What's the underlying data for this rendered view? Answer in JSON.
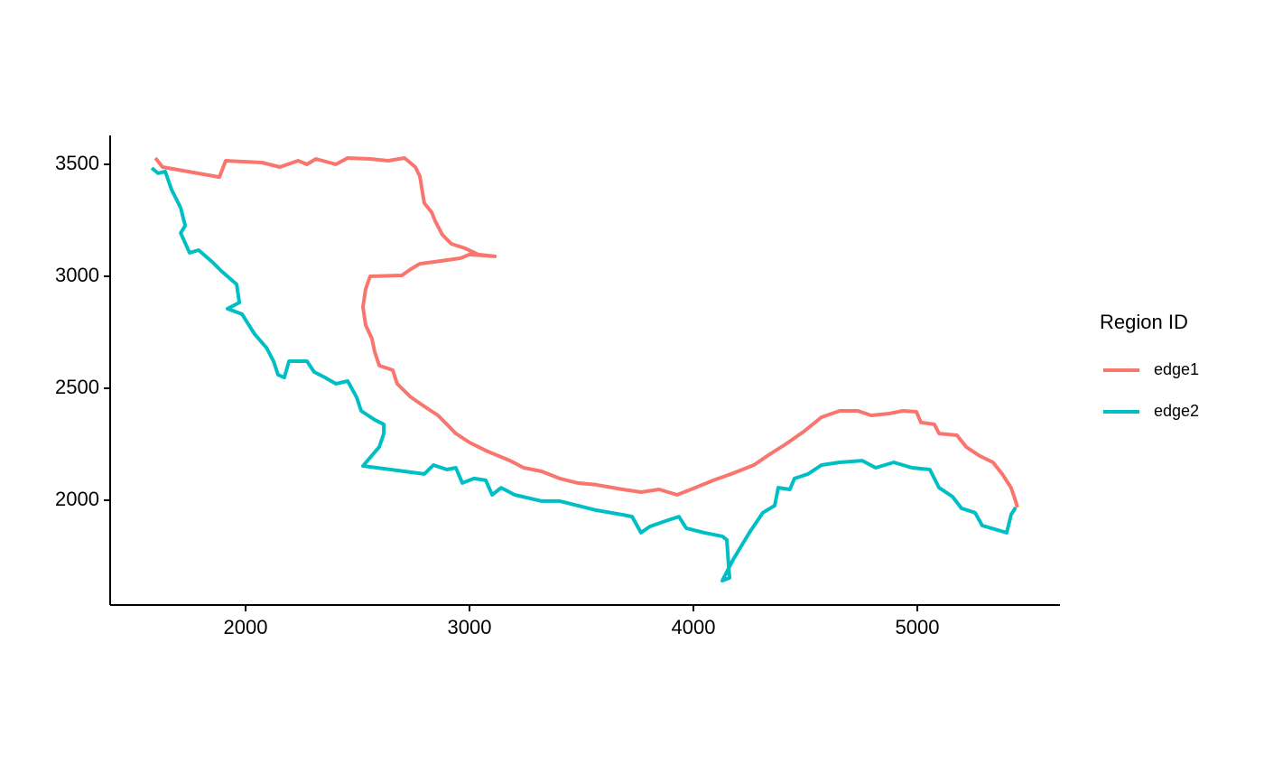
{
  "chart_data": {
    "type": "line",
    "legend_title": "Region ID",
    "legend": "right",
    "xlim": [
      1395,
      5637
    ],
    "ylim": [
      1532,
      3629
    ],
    "xticks": [
      2000,
      3000,
      4000,
      5000
    ],
    "yticks": [
      2000,
      2500,
      3000,
      3500
    ],
    "series": [
      {
        "name": "edge1",
        "color": "#F8766D",
        "x": [
          1597,
          1629,
          1883,
          1911,
          2073,
          2153,
          2234,
          2274,
          2314,
          2403,
          2456,
          2556,
          2637,
          2710,
          2758,
          2778,
          2798,
          2831,
          2847,
          2879,
          2919,
          2980,
          3040,
          3113,
          3000,
          2960,
          2839,
          2778,
          2738,
          2698,
          2556,
          2536,
          2524,
          2536,
          2564,
          2577,
          2597,
          2657,
          2677,
          2738,
          2798,
          2859,
          2899,
          2939,
          3000,
          3081,
          3181,
          3242,
          3322,
          3403,
          3484,
          3564,
          3685,
          3766,
          3847,
          3927,
          4008,
          4089,
          4169,
          4270,
          4330,
          4411,
          4492,
          4572,
          4653,
          4734,
          4794,
          4875,
          4935,
          4996,
          5016,
          5076,
          5097,
          5177,
          5218,
          5278,
          5338,
          5379,
          5419,
          5439,
          5447
        ],
        "values": [
          3528,
          3488,
          3443,
          3516,
          3508,
          3488,
          3516,
          3500,
          3524,
          3500,
          3528,
          3524,
          3516,
          3528,
          3488,
          3447,
          3327,
          3286,
          3246,
          3185,
          3145,
          3125,
          3097,
          3089,
          3097,
          3081,
          3064,
          3056,
          3032,
          3004,
          3000,
          2943,
          2863,
          2782,
          2722,
          2661,
          2601,
          2581,
          2520,
          2460,
          2419,
          2379,
          2339,
          2298,
          2258,
          2218,
          2177,
          2145,
          2129,
          2097,
          2077,
          2069,
          2048,
          2036,
          2048,
          2024,
          2056,
          2089,
          2117,
          2157,
          2198,
          2250,
          2306,
          2371,
          2399,
          2399,
          2379,
          2387,
          2399,
          2395,
          2347,
          2339,
          2298,
          2290,
          2238,
          2198,
          2169,
          2117,
          2056,
          1996,
          1968
        ]
      },
      {
        "name": "edge2",
        "color": "#00BFC4",
        "x": [
          1581,
          1609,
          1641,
          1669,
          1710,
          1730,
          1710,
          1750,
          1790,
          1851,
          1891,
          1960,
          1972,
          1919,
          1984,
          2040,
          2093,
          2125,
          2145,
          2173,
          2194,
          2274,
          2306,
          2355,
          2403,
          2456,
          2496,
          2516,
          2577,
          2617,
          2617,
          2597,
          2524,
          2798,
          2839,
          2899,
          2939,
          2968,
          3020,
          3073,
          3101,
          3141,
          3202,
          3322,
          3403,
          3484,
          3564,
          3685,
          3726,
          3766,
          3806,
          3887,
          3935,
          3968,
          4048,
          4129,
          4149,
          4161,
          4129,
          4177,
          4250,
          4310,
          4363,
          4379,
          4431,
          4451,
          4512,
          4572,
          4653,
          4754,
          4814,
          4895,
          4976,
          5056,
          5097,
          5157,
          5197,
          5258,
          5290,
          5399,
          5419,
          5439
        ],
        "values": [
          3484,
          3460,
          3468,
          3387,
          3306,
          3226,
          3193,
          3105,
          3117,
          3064,
          3024,
          2964,
          2883,
          2855,
          2831,
          2742,
          2681,
          2621,
          2560,
          2548,
          2621,
          2621,
          2573,
          2548,
          2520,
          2532,
          2460,
          2399,
          2359,
          2339,
          2298,
          2238,
          2153,
          2117,
          2157,
          2137,
          2145,
          2077,
          2097,
          2089,
          2024,
          2056,
          2024,
          1996,
          1996,
          1976,
          1956,
          1935,
          1927,
          1855,
          1883,
          1911,
          1927,
          1875,
          1855,
          1839,
          1823,
          1653,
          1641,
          1734,
          1855,
          1944,
          1976,
          2056,
          2048,
          2097,
          2117,
          2157,
          2169,
          2177,
          2145,
          2169,
          2145,
          2137,
          2056,
          2016,
          1964,
          1944,
          1887,
          1855,
          1935,
          1968
        ]
      }
    ]
  }
}
